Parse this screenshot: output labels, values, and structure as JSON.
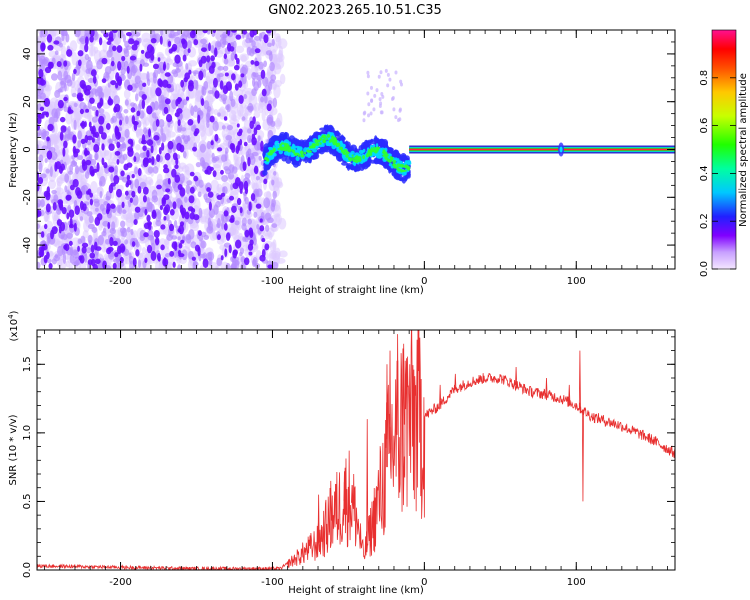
{
  "title": "GN02.2023.265.10.51.C35",
  "chart_data": [
    {
      "type": "heatmap",
      "xlabel": "Height of straight line (km)",
      "ylabel": "Frequency (Hz)",
      "xlim": [
        -255,
        165
      ],
      "ylim": [
        -50,
        50
      ],
      "xticks": [
        -200,
        -100,
        0,
        100
      ],
      "yticks": [
        -40,
        -20,
        0,
        20,
        40
      ],
      "colorbar": {
        "label": "Normalized spectral amplitude",
        "range": [
          0,
          1
        ],
        "ticks": [
          "0.0",
          "0.2",
          "0.4",
          "0.6",
          "0.8"
        ]
      },
      "band": {
        "x_start": -10,
        "x_end": 165,
        "freq": 0
      },
      "dispersed_signal": {
        "x_start": -105,
        "x_end": -10
      },
      "noise_region": {
        "x_start": -255,
        "x_end": -98
      },
      "spike": {
        "x": 90,
        "freq": 0
      }
    },
    {
      "type": "line",
      "xlabel": "Height of straight line (km)",
      "ylabel": "SNR (10 * v/v)",
      "exponent_label": "(x10",
      "exponent_sup": "4",
      "xlim": [
        -255,
        165
      ],
      "ylim": [
        0,
        1.75
      ],
      "xticks": [
        -200,
        -100,
        0,
        100
      ],
      "yticks": [
        "0.0",
        "0.5",
        "1.0",
        "1.5"
      ],
      "color": "#e83030",
      "envelope": [
        [
          -255,
          0.03
        ],
        [
          -150,
          0.01
        ],
        [
          -95,
          0.01
        ],
        [
          -85,
          0.08
        ],
        [
          -70,
          0.2
        ],
        [
          -60,
          0.4
        ],
        [
          -50,
          0.55
        ],
        [
          -45,
          0.4
        ],
        [
          -40,
          0.1
        ],
        [
          -35,
          0.3
        ],
        [
          -28,
          0.6
        ],
        [
          -22,
          0.9
        ],
        [
          -15,
          1.05
        ],
        [
          -10,
          1.1
        ],
        [
          0,
          1.12
        ],
        [
          10,
          1.2
        ],
        [
          20,
          1.32
        ],
        [
          30,
          1.37
        ],
        [
          40,
          1.4
        ],
        [
          50,
          1.4
        ],
        [
          60,
          1.35
        ],
        [
          70,
          1.3
        ],
        [
          80,
          1.28
        ],
        [
          90,
          1.25
        ],
        [
          100,
          1.2
        ],
        [
          110,
          1.12
        ],
        [
          130,
          1.05
        ],
        [
          150,
          0.95
        ],
        [
          165,
          0.85
        ]
      ],
      "spikes": [
        [
          -70,
          0.55
        ],
        [
          -62,
          0.65
        ],
        [
          -53,
          0.72
        ],
        [
          -48,
          0.62
        ],
        [
          -38,
          1.1
        ],
        [
          -25,
          1.5
        ],
        [
          -23,
          1.6
        ],
        [
          -18,
          1.72
        ],
        [
          -14,
          1.65
        ],
        [
          -10,
          1.5
        ],
        [
          10,
          1.35
        ],
        [
          20,
          1.43
        ],
        [
          60,
          1.48
        ],
        [
          80,
          1.4
        ],
        [
          95,
          1.35
        ],
        [
          102,
          1.6
        ],
        [
          104,
          0.5
        ]
      ]
    }
  ]
}
